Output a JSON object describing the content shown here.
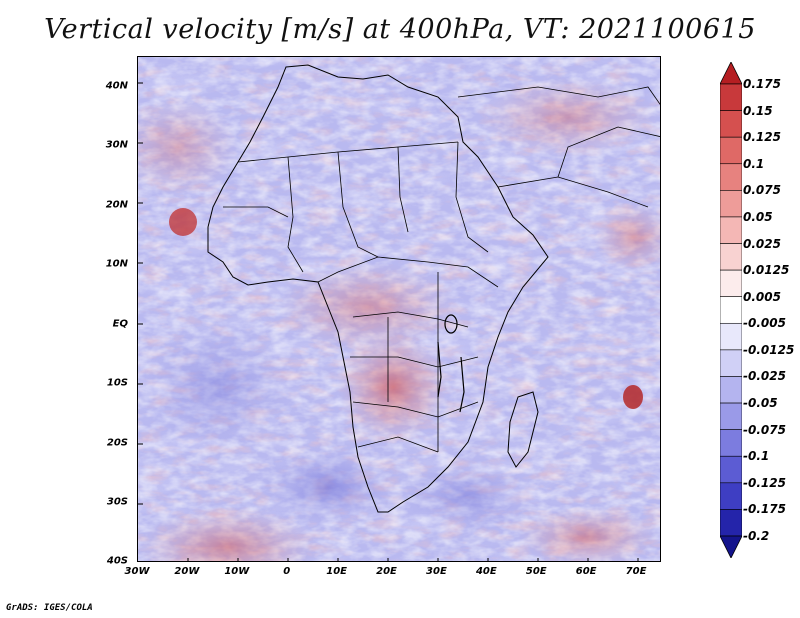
{
  "title": "Vertical velocity [m/s] at 400hPa, VT: 2021100615",
  "credit": "GrADS: IGES/COLA",
  "map": {
    "projection": "lat-lon",
    "lon_range": [
      -30,
      75
    ],
    "lat_range": [
      -40,
      45
    ],
    "lat_ticks": [
      {
        "value": 40,
        "label": "40N"
      },
      {
        "value": 30,
        "label": "30N"
      },
      {
        "value": 20,
        "label": "20N"
      },
      {
        "value": 10,
        "label": "10N"
      },
      {
        "value": 0,
        "label": "EQ"
      },
      {
        "value": -10,
        "label": "10S"
      },
      {
        "value": -20,
        "label": "20S"
      },
      {
        "value": -30,
        "label": "30S"
      },
      {
        "value": -40,
        "label": "40S"
      }
    ],
    "lon_ticks": [
      {
        "value": -30,
        "label": "30W"
      },
      {
        "value": -20,
        "label": "20W"
      },
      {
        "value": -10,
        "label": "10W"
      },
      {
        "value": 0,
        "label": "0"
      },
      {
        "value": 10,
        "label": "10E"
      },
      {
        "value": 20,
        "label": "20E"
      },
      {
        "value": 30,
        "label": "30E"
      },
      {
        "value": 40,
        "label": "40E"
      },
      {
        "value": 50,
        "label": "50E"
      },
      {
        "value": 60,
        "label": "60E"
      },
      {
        "value": 70,
        "label": "70E"
      }
    ]
  },
  "colorbar": {
    "levels": [
      "0.175",
      "0.15",
      "0.125",
      "0.1",
      "0.075",
      "0.05",
      "0.025",
      "0.0125",
      "0.005",
      "-0.005",
      "-0.0125",
      "-0.025",
      "-0.05",
      "-0.075",
      "-0.1",
      "-0.125",
      "-0.175",
      "-0.2"
    ],
    "colors": [
      "#b51e22",
      "#c8393b",
      "#d5504f",
      "#df6966",
      "#e7827f",
      "#ee9c99",
      "#f4b7b5",
      "#f8d2d1",
      "#fcecec",
      "#ffffff",
      "#e8e8fb",
      "#d0d0f6",
      "#b4b4ef",
      "#9a9ae8",
      "#7c7cdf",
      "#5c5cd3",
      "#3e3ec3",
      "#2424aa",
      "#14148c"
    ]
  }
}
